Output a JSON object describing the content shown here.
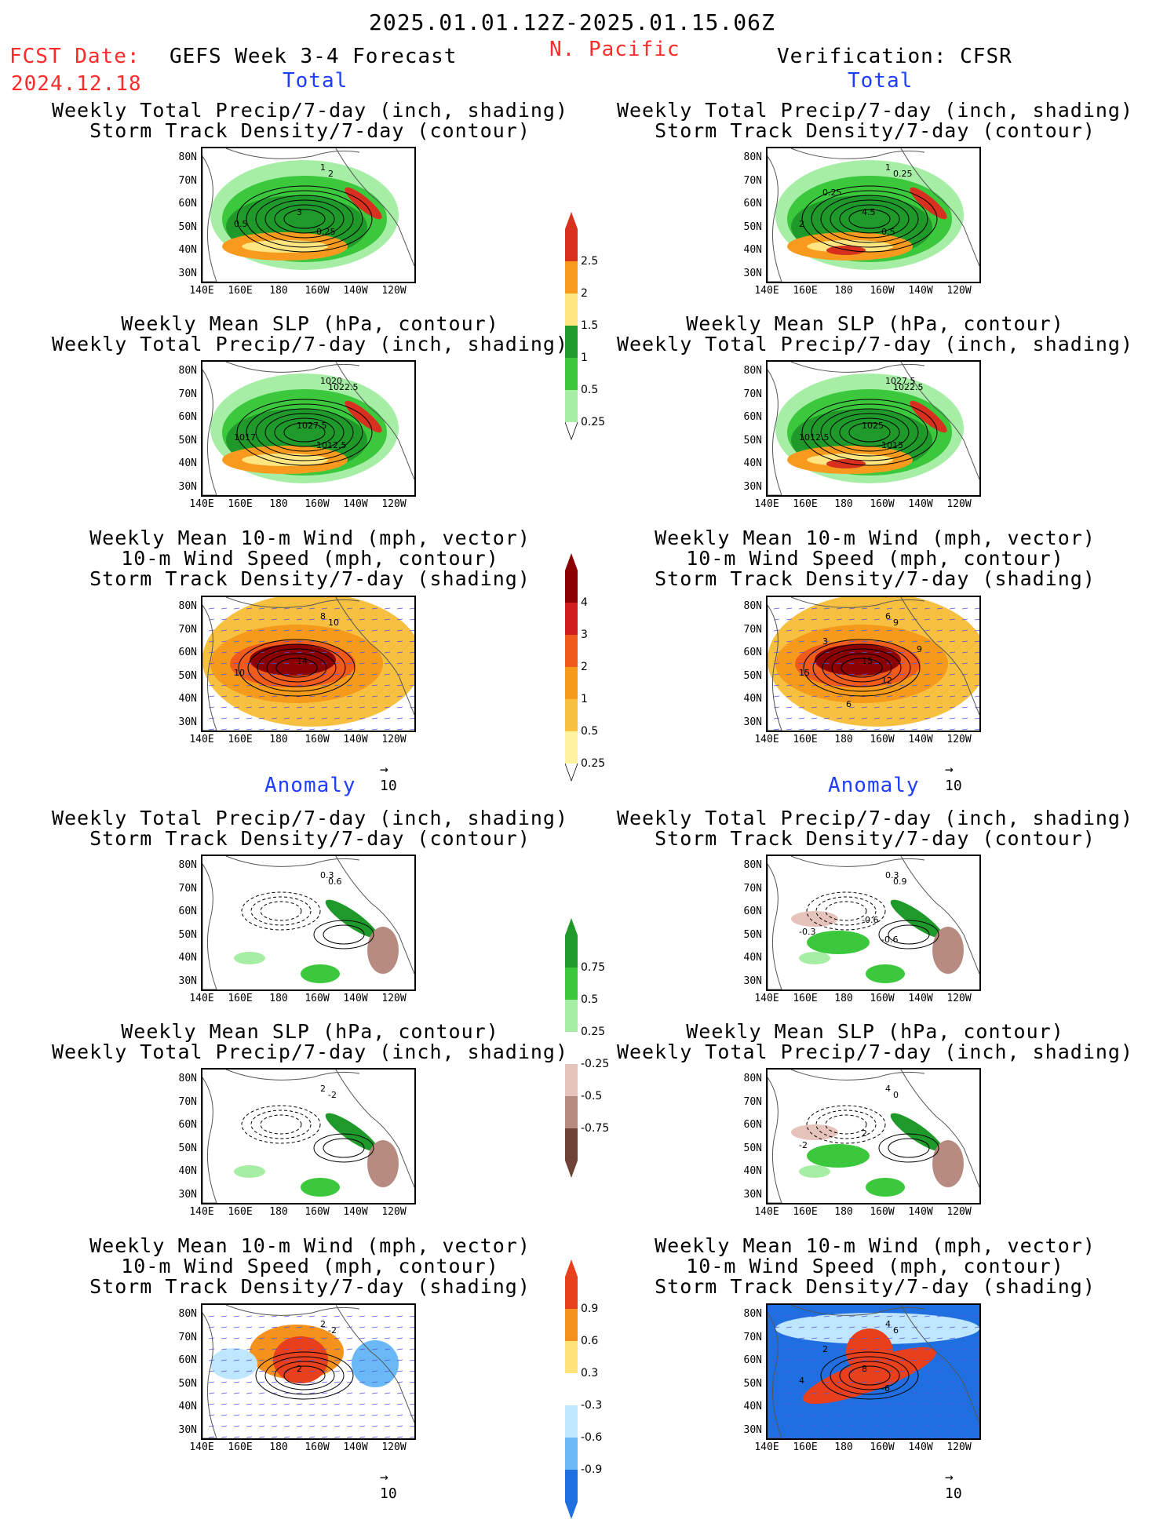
{
  "header": {
    "date_range": "2025.01.01.12Z-2025.01.15.06Z",
    "fcst_label": "FCST Date:",
    "fcst_date": "2024.12.18",
    "model": "GEFS Week 3-4 Forecast",
    "region": "N. Pacific",
    "verification": "Verification: CFSR"
  },
  "sections": {
    "total": "Total",
    "anomaly": "Anomaly"
  },
  "panel_titles": {
    "precip_storm": "Weekly Total Precip/7-day (inch, shading)\nStorm Track Density/7-day (contour)",
    "slp_precip": "Weekly Mean SLP (hPa, contour)\nWeekly Total Precip/7-day (inch, shading)",
    "wind_storm": "Weekly Mean 10-m Wind (mph, vector)\n10-m Wind Speed (mph, contour)\nStorm Track Density/7-day (shading)"
  },
  "axes": {
    "lat_ticks": [
      "80N",
      "70N",
      "60N",
      "50N",
      "40N",
      "30N"
    ],
    "lon_ticks": [
      "140E",
      "160E",
      "180",
      "160W",
      "140W",
      "120W"
    ]
  },
  "vector_ref": "10",
  "colorbars": {
    "precip_total": {
      "labels": [
        "2.5",
        "2",
        "1.5",
        "1",
        "0.5",
        "0.25"
      ],
      "colors": [
        "#d7301f",
        "#f79a1e",
        "#ffe680",
        "#1f9a2a",
        "#3cc83c",
        "#a6eea6"
      ]
    },
    "storm_total": {
      "labels": [
        "4",
        "3",
        "2",
        "1",
        "0.5",
        "0.25"
      ],
      "colors": [
        "#8b0000",
        "#d01c1c",
        "#f05a1a",
        "#f59a1a",
        "#f7c040",
        "#fff2a0"
      ]
    },
    "precip_anom": {
      "labels": [
        "0.75",
        "0.5",
        "0.25",
        "-0.25",
        "-0.5",
        "-0.75"
      ],
      "colors": [
        "#1f9a2a",
        "#3cc83c",
        "#a6eea6",
        "#ffffff",
        "#e6c4bc",
        "#b88b80",
        "#6e4236"
      ]
    },
    "storm_anom": {
      "labels": [
        "0.9",
        "0.6",
        "0.3",
        "-0.3",
        "-0.6",
        "-0.9"
      ],
      "colors": [
        "#e8401c",
        "#f5921e",
        "#ffe27a",
        "#ffffff",
        "#bfe6ff",
        "#6ab8f5",
        "#1f6fe0"
      ]
    }
  },
  "panels": [
    {
      "id": "fc-total-precip",
      "labels": [
        "1",
        "2",
        "3",
        "0.5",
        "0.25"
      ]
    },
    {
      "id": "ob-total-precip",
      "labels": [
        "1",
        "0.25",
        "4.5",
        "2",
        "0.5",
        "0.25"
      ]
    },
    {
      "id": "fc-total-slp",
      "labels": [
        "1020",
        "1022.5",
        "1027.5",
        "1017",
        "1012.5"
      ]
    },
    {
      "id": "ob-total-slp",
      "labels": [
        "1027.5",
        "1022.5",
        "1025",
        "1012.5",
        "1015"
      ]
    },
    {
      "id": "fc-total-wind",
      "labels": [
        "8",
        "10",
        "14",
        "10"
      ]
    },
    {
      "id": "ob-total-wind",
      "labels": [
        "6",
        "9",
        "15",
        "15",
        "12",
        "3",
        "9",
        "6"
      ]
    },
    {
      "id": "fc-anom-precip",
      "labels": [
        "0.3",
        "0.6"
      ]
    },
    {
      "id": "ob-anom-precip",
      "labels": [
        "0.3",
        "0.9",
        "-0.6",
        "-0.3",
        "-0.6"
      ]
    },
    {
      "id": "fc-anom-slp",
      "labels": [
        "2",
        "-2"
      ]
    },
    {
      "id": "ob-anom-slp",
      "labels": [
        "4",
        "0",
        "2",
        "-2"
      ]
    },
    {
      "id": "fc-anom-wind",
      "labels": [
        "2",
        "-2",
        "2"
      ]
    },
    {
      "id": "ob-anom-wind",
      "labels": [
        "4",
        "6",
        "8",
        "4",
        "-6",
        "2"
      ]
    }
  ]
}
